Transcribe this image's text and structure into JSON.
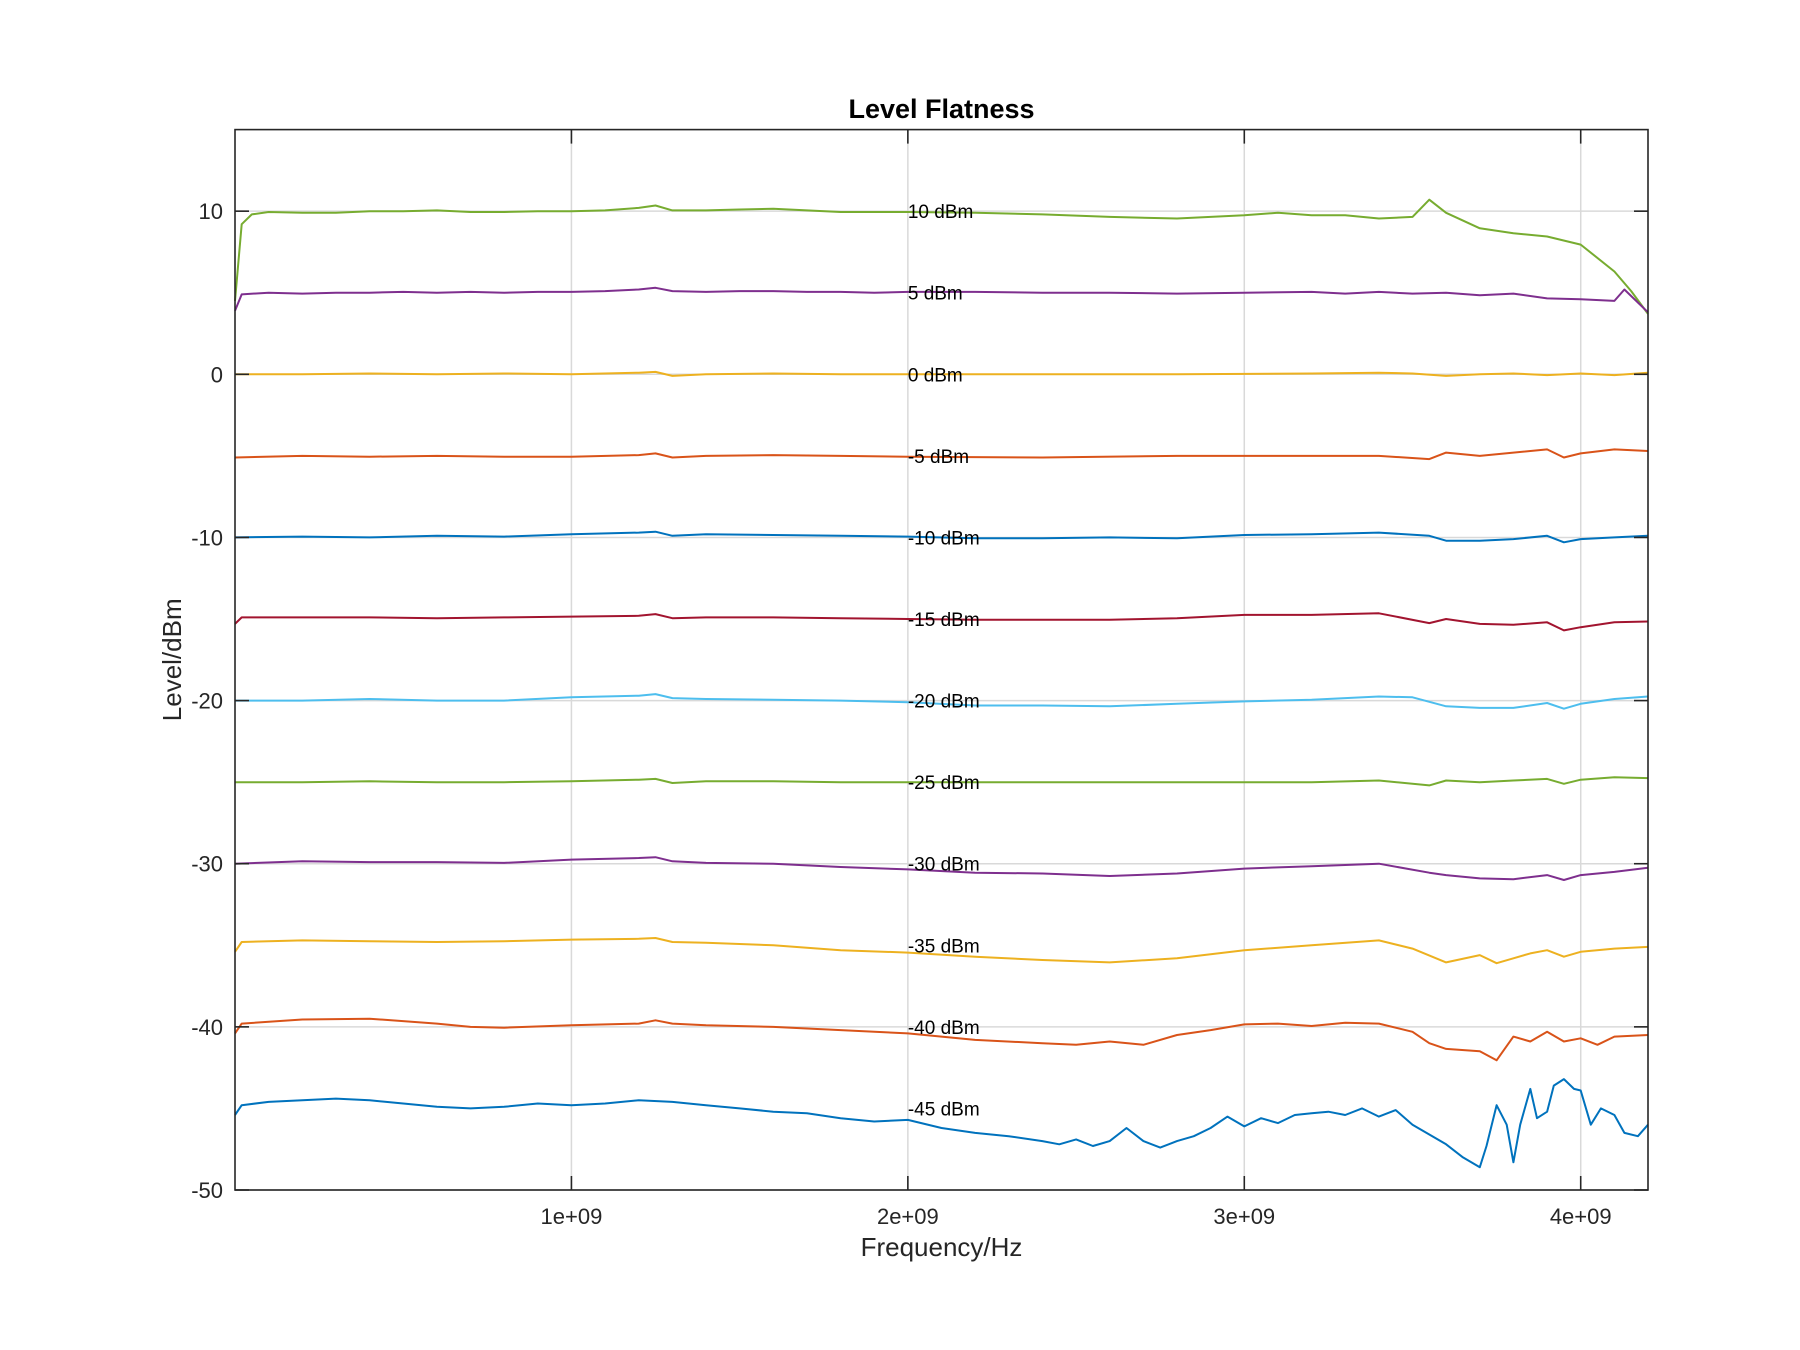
{
  "chart_data": {
    "type": "line",
    "title": "Level Flatness",
    "xlabel": "Frequency/Hz",
    "ylabel": "Level/dBm",
    "xlim": [
      0,
      4200000000
    ],
    "ylim": [
      -50,
      15
    ],
    "x_ticks": [
      {
        "value": 1000000000,
        "label": "1e+09"
      },
      {
        "value": 2000000000,
        "label": "2e+09"
      },
      {
        "value": 3000000000,
        "label": "3e+09"
      },
      {
        "value": 4000000000,
        "label": "4e+09"
      }
    ],
    "y_ticks": [
      {
        "value": 10,
        "label": "10"
      },
      {
        "value": 0,
        "label": "0"
      },
      {
        "value": -10,
        "label": "-10"
      },
      {
        "value": -20,
        "label": "-20"
      },
      {
        "value": -30,
        "label": "-30"
      },
      {
        "value": -40,
        "label": "-40"
      },
      {
        "value": -50,
        "label": "-50"
      }
    ],
    "grid": true,
    "annotation_x": 2000000000,
    "series": [
      {
        "name": "10 dBm",
        "color": "#77ac30",
        "x": [
          0,
          20000000,
          50000000,
          100000000,
          200000000,
          300000000,
          400000000,
          500000000,
          600000000,
          700000000,
          800000000,
          900000000,
          1000000000,
          1100000000,
          1200000000,
          1250000000,
          1300000000,
          1400000000,
          1500000000,
          1600000000,
          1700000000,
          1800000000,
          1900000000,
          2000000000,
          2200000000,
          2400000000,
          2600000000,
          2800000000,
          3000000000,
          3100000000,
          3200000000,
          3300000000,
          3400000000,
          3500000000,
          3550000000,
          3600000000,
          3700000000,
          3800000000,
          3900000000,
          4000000000,
          4100000000,
          4150000000,
          4200000000
        ],
        "y": [
          4.5,
          9.2,
          9.8,
          9.95,
          9.9,
          9.9,
          10.0,
          10.0,
          10.05,
          9.95,
          9.95,
          10.0,
          10.0,
          10.05,
          10.2,
          10.35,
          10.05,
          10.05,
          10.1,
          10.15,
          10.05,
          9.95,
          9.95,
          9.95,
          9.9,
          9.8,
          9.65,
          9.55,
          9.75,
          9.9,
          9.75,
          9.75,
          9.55,
          9.65,
          10.7,
          9.9,
          8.95,
          8.65,
          8.45,
          7.95,
          6.3,
          5.1,
          3.7
        ]
      },
      {
        "name": "5 dBm",
        "color": "#7e2f8e",
        "x": [
          0,
          20000000,
          100000000,
          200000000,
          300000000,
          400000000,
          500000000,
          600000000,
          700000000,
          800000000,
          900000000,
          1000000000,
          1100000000,
          1200000000,
          1250000000,
          1300000000,
          1400000000,
          1500000000,
          1600000000,
          1700000000,
          1800000000,
          1900000000,
          2000000000,
          2200000000,
          2400000000,
          2600000000,
          2800000000,
          3000000000,
          3200000000,
          3300000000,
          3400000000,
          3500000000,
          3600000000,
          3700000000,
          3800000000,
          3900000000,
          4000000000,
          4100000000,
          4130000000,
          4200000000
        ],
        "y": [
          3.9,
          4.9,
          5.0,
          4.95,
          5.0,
          5.0,
          5.05,
          5.0,
          5.05,
          5.0,
          5.05,
          5.05,
          5.1,
          5.2,
          5.3,
          5.1,
          5.05,
          5.1,
          5.1,
          5.05,
          5.05,
          5.0,
          5.05,
          5.05,
          5.0,
          5.0,
          4.95,
          5.0,
          5.05,
          4.95,
          5.05,
          4.95,
          5.0,
          4.85,
          4.95,
          4.65,
          4.6,
          4.5,
          5.2,
          3.8
        ]
      },
      {
        "name": "0 dBm",
        "color": "#edb120",
        "x": [
          0,
          200000000,
          400000000,
          600000000,
          800000000,
          1000000000,
          1200000000,
          1250000000,
          1300000000,
          1400000000,
          1600000000,
          1800000000,
          2000000000,
          2400000000,
          2800000000,
          3200000000,
          3400000000,
          3500000000,
          3600000000,
          3700000000,
          3800000000,
          3900000000,
          4000000000,
          4100000000,
          4200000000
        ],
        "y": [
          0.0,
          0.0,
          0.05,
          0.0,
          0.05,
          0.0,
          0.1,
          0.15,
          -0.1,
          0.0,
          0.05,
          0.0,
          0.0,
          0.0,
          0.0,
          0.05,
          0.1,
          0.05,
          -0.1,
          0.0,
          0.05,
          -0.05,
          0.05,
          -0.05,
          0.1
        ]
      },
      {
        "name": "-5 dBm",
        "color": "#d95319",
        "x": [
          0,
          200000000,
          400000000,
          600000000,
          800000000,
          1000000000,
          1200000000,
          1250000000,
          1300000000,
          1400000000,
          1600000000,
          1800000000,
          2000000000,
          2400000000,
          2800000000,
          3200000000,
          3400000000,
          3550000000,
          3600000000,
          3700000000,
          3800000000,
          3900000000,
          3950000000,
          4000000000,
          4100000000,
          4200000000
        ],
        "y": [
          -5.1,
          -5.0,
          -5.05,
          -5.0,
          -5.05,
          -5.05,
          -4.95,
          -4.85,
          -5.1,
          -5.0,
          -4.95,
          -5.0,
          -5.05,
          -5.1,
          -5.0,
          -5.0,
          -5.0,
          -5.2,
          -4.8,
          -5.0,
          -4.8,
          -4.6,
          -5.1,
          -4.85,
          -4.6,
          -4.7
        ]
      },
      {
        "name": "-10 dBm",
        "color": "#0072bd",
        "x": [
          0,
          200000000,
          400000000,
          600000000,
          800000000,
          1000000000,
          1200000000,
          1250000000,
          1300000000,
          1400000000,
          1600000000,
          1800000000,
          2000000000,
          2200000000,
          2400000000,
          2600000000,
          2800000000,
          3000000000,
          3200000000,
          3400000000,
          3550000000,
          3600000000,
          3700000000,
          3800000000,
          3900000000,
          3950000000,
          4000000000,
          4100000000,
          4200000000
        ],
        "y": [
          -10.0,
          -9.95,
          -10.0,
          -9.9,
          -9.95,
          -9.8,
          -9.7,
          -9.65,
          -9.9,
          -9.8,
          -9.85,
          -9.9,
          -9.95,
          -10.05,
          -10.05,
          -10.0,
          -10.05,
          -9.85,
          -9.8,
          -9.7,
          -9.9,
          -10.2,
          -10.2,
          -10.1,
          -9.9,
          -10.3,
          -10.1,
          -10.0,
          -9.9
        ]
      },
      {
        "name": "-15 dBm",
        "color": "#a2142f",
        "x": [
          0,
          20000000,
          200000000,
          400000000,
          600000000,
          800000000,
          1000000000,
          1200000000,
          1250000000,
          1300000000,
          1400000000,
          1600000000,
          1800000000,
          2000000000,
          2200000000,
          2400000000,
          2600000000,
          2800000000,
          3000000000,
          3200000000,
          3400000000,
          3550000000,
          3600000000,
          3700000000,
          3800000000,
          3900000000,
          3950000000,
          4000000000,
          4100000000,
          4200000000
        ],
        "y": [
          -15.3,
          -14.9,
          -14.9,
          -14.9,
          -14.95,
          -14.9,
          -14.85,
          -14.8,
          -14.7,
          -14.95,
          -14.9,
          -14.9,
          -14.95,
          -15.0,
          -15.05,
          -15.05,
          -15.05,
          -14.95,
          -14.75,
          -14.75,
          -14.65,
          -15.25,
          -15.0,
          -15.3,
          -15.35,
          -15.2,
          -15.7,
          -15.5,
          -15.2,
          -15.15
        ]
      },
      {
        "name": "-20 dBm",
        "color": "#4dbeee",
        "x": [
          0,
          200000000,
          400000000,
          600000000,
          800000000,
          1000000000,
          1200000000,
          1250000000,
          1300000000,
          1400000000,
          1600000000,
          1800000000,
          2000000000,
          2200000000,
          2400000000,
          2600000000,
          2800000000,
          3000000000,
          3200000000,
          3400000000,
          3500000000,
          3600000000,
          3700000000,
          3800000000,
          3900000000,
          3950000000,
          4000000000,
          4100000000,
          4200000000
        ],
        "y": [
          -20.0,
          -20.0,
          -19.9,
          -20.0,
          -20.0,
          -19.8,
          -19.7,
          -19.6,
          -19.85,
          -19.9,
          -19.95,
          -20.0,
          -20.1,
          -20.3,
          -20.3,
          -20.35,
          -20.2,
          -20.05,
          -19.95,
          -19.75,
          -19.8,
          -20.35,
          -20.45,
          -20.45,
          -20.15,
          -20.5,
          -20.2,
          -19.9,
          -19.75
        ]
      },
      {
        "name": "-25 dBm",
        "color": "#77ac30",
        "x": [
          0,
          200000000,
          400000000,
          600000000,
          800000000,
          1000000000,
          1200000000,
          1250000000,
          1300000000,
          1400000000,
          1600000000,
          1800000000,
          2000000000,
          2400000000,
          2800000000,
          3200000000,
          3400000000,
          3550000000,
          3600000000,
          3700000000,
          3800000000,
          3900000000,
          3950000000,
          4000000000,
          4100000000,
          4200000000
        ],
        "y": [
          -25.0,
          -25.0,
          -24.95,
          -25.0,
          -25.0,
          -24.95,
          -24.85,
          -24.8,
          -25.05,
          -24.95,
          -24.95,
          -25.0,
          -25.0,
          -25.0,
          -25.0,
          -25.0,
          -24.9,
          -25.2,
          -24.9,
          -25.0,
          -24.9,
          -24.8,
          -25.1,
          -24.85,
          -24.7,
          -24.75
        ]
      },
      {
        "name": "-30 dBm",
        "color": "#7e2f8e",
        "x": [
          0,
          200000000,
          400000000,
          600000000,
          800000000,
          1000000000,
          1200000000,
          1250000000,
          1300000000,
          1400000000,
          1600000000,
          1800000000,
          2000000000,
          2200000000,
          2400000000,
          2600000000,
          2800000000,
          3000000000,
          3200000000,
          3400000000,
          3550000000,
          3600000000,
          3700000000,
          3800000000,
          3900000000,
          3950000000,
          4000000000,
          4100000000,
          4200000000
        ],
        "y": [
          -30.0,
          -29.85,
          -29.9,
          -29.9,
          -29.95,
          -29.75,
          -29.65,
          -29.6,
          -29.85,
          -29.95,
          -30.0,
          -30.2,
          -30.35,
          -30.55,
          -30.6,
          -30.75,
          -30.6,
          -30.3,
          -30.15,
          -30.0,
          -30.55,
          -30.7,
          -30.9,
          -30.95,
          -30.7,
          -31.0,
          -30.7,
          -30.5,
          -30.25
        ]
      },
      {
        "name": "-35 dBm",
        "color": "#edb120",
        "x": [
          0,
          20000000,
          200000000,
          400000000,
          600000000,
          800000000,
          1000000000,
          1200000000,
          1250000000,
          1300000000,
          1400000000,
          1600000000,
          1800000000,
          2000000000,
          2200000000,
          2400000000,
          2600000000,
          2800000000,
          3000000000,
          3200000000,
          3400000000,
          3500000000,
          3600000000,
          3700000000,
          3750000000,
          3800000000,
          3850000000,
          3900000000,
          3950000000,
          4000000000,
          4100000000,
          4200000000
        ],
        "y": [
          -35.4,
          -34.8,
          -34.7,
          -34.75,
          -34.8,
          -34.75,
          -34.65,
          -34.6,
          -34.55,
          -34.8,
          -34.85,
          -35.0,
          -35.3,
          -35.45,
          -35.7,
          -35.9,
          -36.05,
          -35.8,
          -35.3,
          -35.0,
          -34.7,
          -35.2,
          -36.05,
          -35.6,
          -36.1,
          -35.8,
          -35.5,
          -35.3,
          -35.7,
          -35.4,
          -35.2,
          -35.1
        ]
      },
      {
        "name": "-40 dBm",
        "color": "#d95319",
        "x": [
          0,
          20000000,
          200000000,
          400000000,
          600000000,
          700000000,
          800000000,
          1000000000,
          1200000000,
          1250000000,
          1300000000,
          1400000000,
          1600000000,
          1800000000,
          2000000000,
          2200000000,
          2400000000,
          2500000000,
          2600000000,
          2700000000,
          2800000000,
          2900000000,
          3000000000,
          3100000000,
          3200000000,
          3300000000,
          3400000000,
          3500000000,
          3550000000,
          3600000000,
          3700000000,
          3750000000,
          3800000000,
          3850000000,
          3900000000,
          3950000000,
          4000000000,
          4050000000,
          4100000000,
          4200000000
        ],
        "y": [
          -40.4,
          -39.8,
          -39.55,
          -39.5,
          -39.8,
          -40.0,
          -40.05,
          -39.9,
          -39.8,
          -39.6,
          -39.8,
          -39.9,
          -40.0,
          -40.2,
          -40.4,
          -40.8,
          -41.0,
          -41.1,
          -40.9,
          -41.1,
          -40.5,
          -40.2,
          -39.85,
          -39.8,
          -39.95,
          -39.75,
          -39.8,
          -40.3,
          -41.0,
          -41.35,
          -41.5,
          -42.05,
          -40.6,
          -40.9,
          -40.3,
          -40.9,
          -40.7,
          -41.1,
          -40.6,
          -40.5
        ]
      },
      {
        "name": "-45 dBm",
        "color": "#0072bd",
        "x": [
          0,
          20000000,
          100000000,
          200000000,
          300000000,
          400000000,
          500000000,
          600000000,
          700000000,
          800000000,
          900000000,
          1000000000,
          1100000000,
          1200000000,
          1300000000,
          1400000000,
          1500000000,
          1600000000,
          1700000000,
          1800000000,
          1900000000,
          2000000000,
          2100000000,
          2200000000,
          2300000000,
          2400000000,
          2450000000,
          2500000000,
          2550000000,
          2600000000,
          2650000000,
          2700000000,
          2750000000,
          2800000000,
          2850000000,
          2900000000,
          2950000000,
          3000000000,
          3050000000,
          3100000000,
          3150000000,
          3200000000,
          3250000000,
          3300000000,
          3350000000,
          3400000000,
          3450000000,
          3500000000,
          3550000000,
          3600000000,
          3650000000,
          3700000000,
          3720000000,
          3750000000,
          3780000000,
          3800000000,
          3820000000,
          3850000000,
          3870000000,
          3900000000,
          3920000000,
          3950000000,
          3980000000,
          4000000000,
          4030000000,
          4060000000,
          4100000000,
          4130000000,
          4170000000,
          4200000000
        ],
        "y": [
          -45.4,
          -44.8,
          -44.6,
          -44.5,
          -44.4,
          -44.5,
          -44.7,
          -44.9,
          -45.0,
          -44.9,
          -44.7,
          -44.8,
          -44.7,
          -44.5,
          -44.6,
          -44.8,
          -45.0,
          -45.2,
          -45.3,
          -45.6,
          -45.8,
          -45.7,
          -46.2,
          -46.5,
          -46.7,
          -47.0,
          -47.2,
          -46.9,
          -47.3,
          -47.0,
          -46.2,
          -47.0,
          -47.4,
          -47.0,
          -46.7,
          -46.2,
          -45.5,
          -46.1,
          -45.6,
          -45.9,
          -45.4,
          -45.3,
          -45.2,
          -45.4,
          -45.0,
          -45.5,
          -45.1,
          -46.0,
          -46.6,
          -47.2,
          -48.0,
          -48.6,
          -47.3,
          -44.8,
          -46.0,
          -48.3,
          -46.0,
          -43.8,
          -45.6,
          -45.2,
          -43.6,
          -43.2,
          -43.8,
          -43.9,
          -46.0,
          -45.0,
          -45.4,
          -46.5,
          -46.7,
          -46.0
        ]
      }
    ]
  }
}
